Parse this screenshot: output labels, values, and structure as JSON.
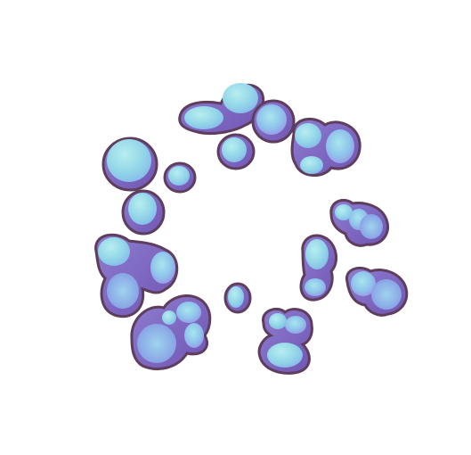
{
  "image": {
    "subject": "ring-of-bubble-clusters",
    "palette": {
      "background": "#ffffff",
      "outline": "#5e3e5c",
      "shell": "#8a6fc4",
      "shell_dark": "#6a51ad",
      "core_light": "#9be0e6",
      "core_blue": "#8cc7ea",
      "core_lavender": "#a98ee4"
    },
    "cluster_count": 13
  }
}
